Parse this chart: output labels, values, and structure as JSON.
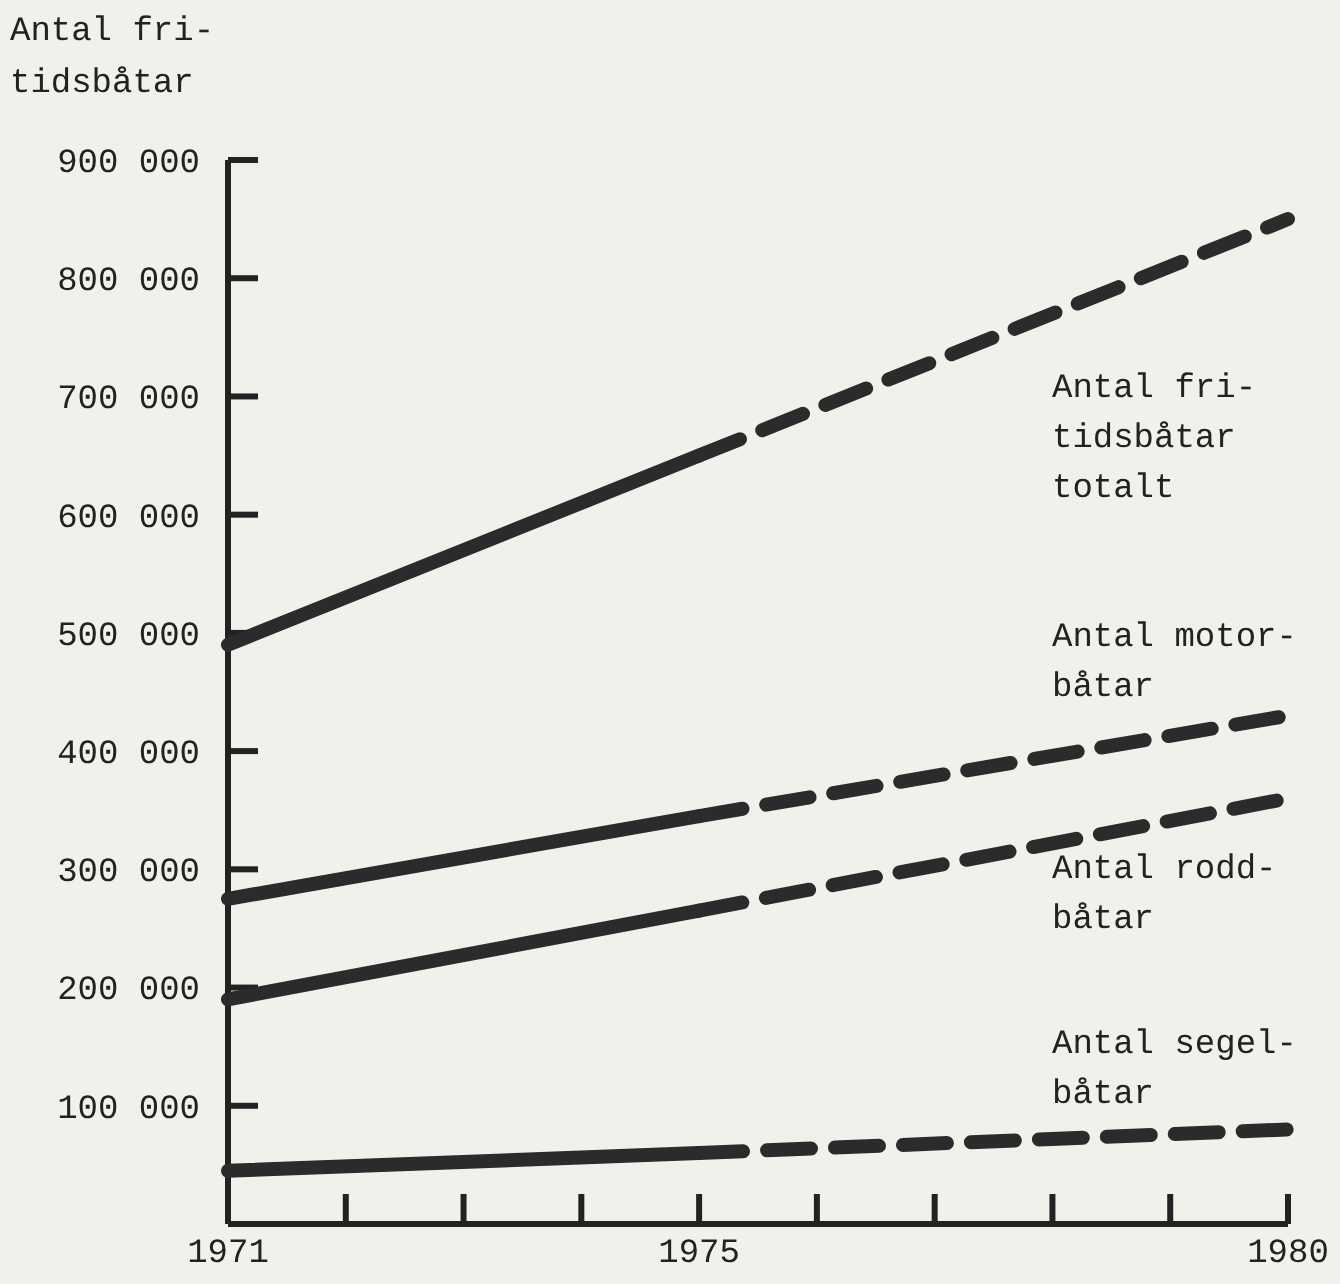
{
  "chart_data": {
    "type": "line",
    "ylabel": "Antal fri-\ntidsbåtar",
    "x": [
      1971,
      1975,
      1980
    ],
    "xlim": [
      1971,
      1980
    ],
    "ylim": [
      0,
      900000
    ],
    "xticks": [
      1971,
      {
        "value": 1972,
        "label": null
      },
      {
        "value": 1973,
        "label": null
      },
      {
        "value": 1974,
        "label": null
      },
      1975,
      {
        "value": 1976,
        "label": null
      },
      {
        "value": 1977,
        "label": null
      },
      {
        "value": 1978,
        "label": null
      },
      {
        "value": 1979,
        "label": null
      },
      1980
    ],
    "yticks": [
      {
        "value": 100000,
        "label": "100 000"
      },
      {
        "value": 200000,
        "label": "200 000"
      },
      {
        "value": 300000,
        "label": "300 000"
      },
      {
        "value": 400000,
        "label": "400 000"
      },
      {
        "value": 500000,
        "label": "500 000"
      },
      {
        "value": 600000,
        "label": "600 000"
      },
      {
        "value": 700000,
        "label": "700 000"
      },
      {
        "value": 800000,
        "label": "800 000"
      },
      {
        "value": 900000,
        "label": "900 000"
      }
    ],
    "marker": "none",
    "grid": false,
    "series": [
      {
        "color": "#2b2b2b",
        "line_style": "solid",
        "values": [
          490000,
          650000,
          null
        ]
      },
      {
        "name": "Antal fri-\ntidsbåtar\ntotalt",
        "color": "#2b2b2b",
        "line_style": "dashed",
        "values": [
          null,
          650000,
          850000
        ]
      },
      {
        "color": "#2b2b2b",
        "line_style": "solid",
        "values": [
          275000,
          345000,
          null
        ]
      },
      {
        "name": "Antal motor-\nbåtar",
        "color": "#2b2b2b",
        "line_style": "dashed",
        "values": [
          null,
          345000,
          430000
        ]
      },
      {
        "color": "#2b2b2b",
        "line_style": "solid",
        "values": [
          190000,
          265000,
          null
        ]
      },
      {
        "name": "Antal rodd-\nbåtar",
        "color": "#2b2b2b",
        "line_style": "dashed",
        "values": [
          null,
          265000,
          360000
        ]
      },
      {
        "color": "#2b2b2b",
        "line_style": "solid",
        "values": [
          45000,
          60000,
          null
        ]
      },
      {
        "name": "Antal segel-\nbåtar",
        "color": "#2b2b2b",
        "line_style": "dashed",
        "values": [
          null,
          60000,
          80000
        ]
      }
    ]
  }
}
